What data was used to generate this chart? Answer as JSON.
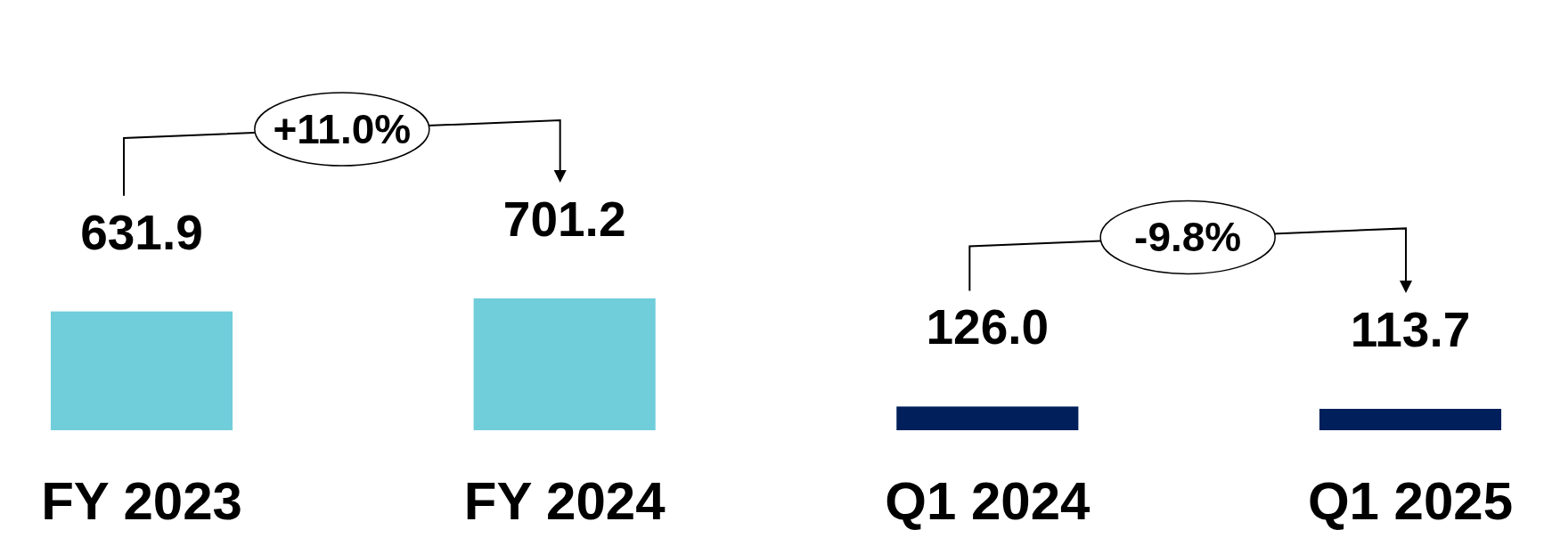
{
  "chart_data": {
    "type": "bar",
    "categories": [
      "FY 2023",
      "FY 2024",
      "Q1 2024",
      "Q1 2025"
    ],
    "values": [
      631.9,
      701.2,
      126.0,
      113.7
    ],
    "colors": [
      "#70cdda",
      "#70cdda",
      "#001f5b",
      "#001f5b"
    ],
    "value_labels": [
      "631.9",
      "701.2",
      "126.0",
      "113.7"
    ],
    "annotations": [
      "+11.0%",
      "-9.8%"
    ]
  }
}
